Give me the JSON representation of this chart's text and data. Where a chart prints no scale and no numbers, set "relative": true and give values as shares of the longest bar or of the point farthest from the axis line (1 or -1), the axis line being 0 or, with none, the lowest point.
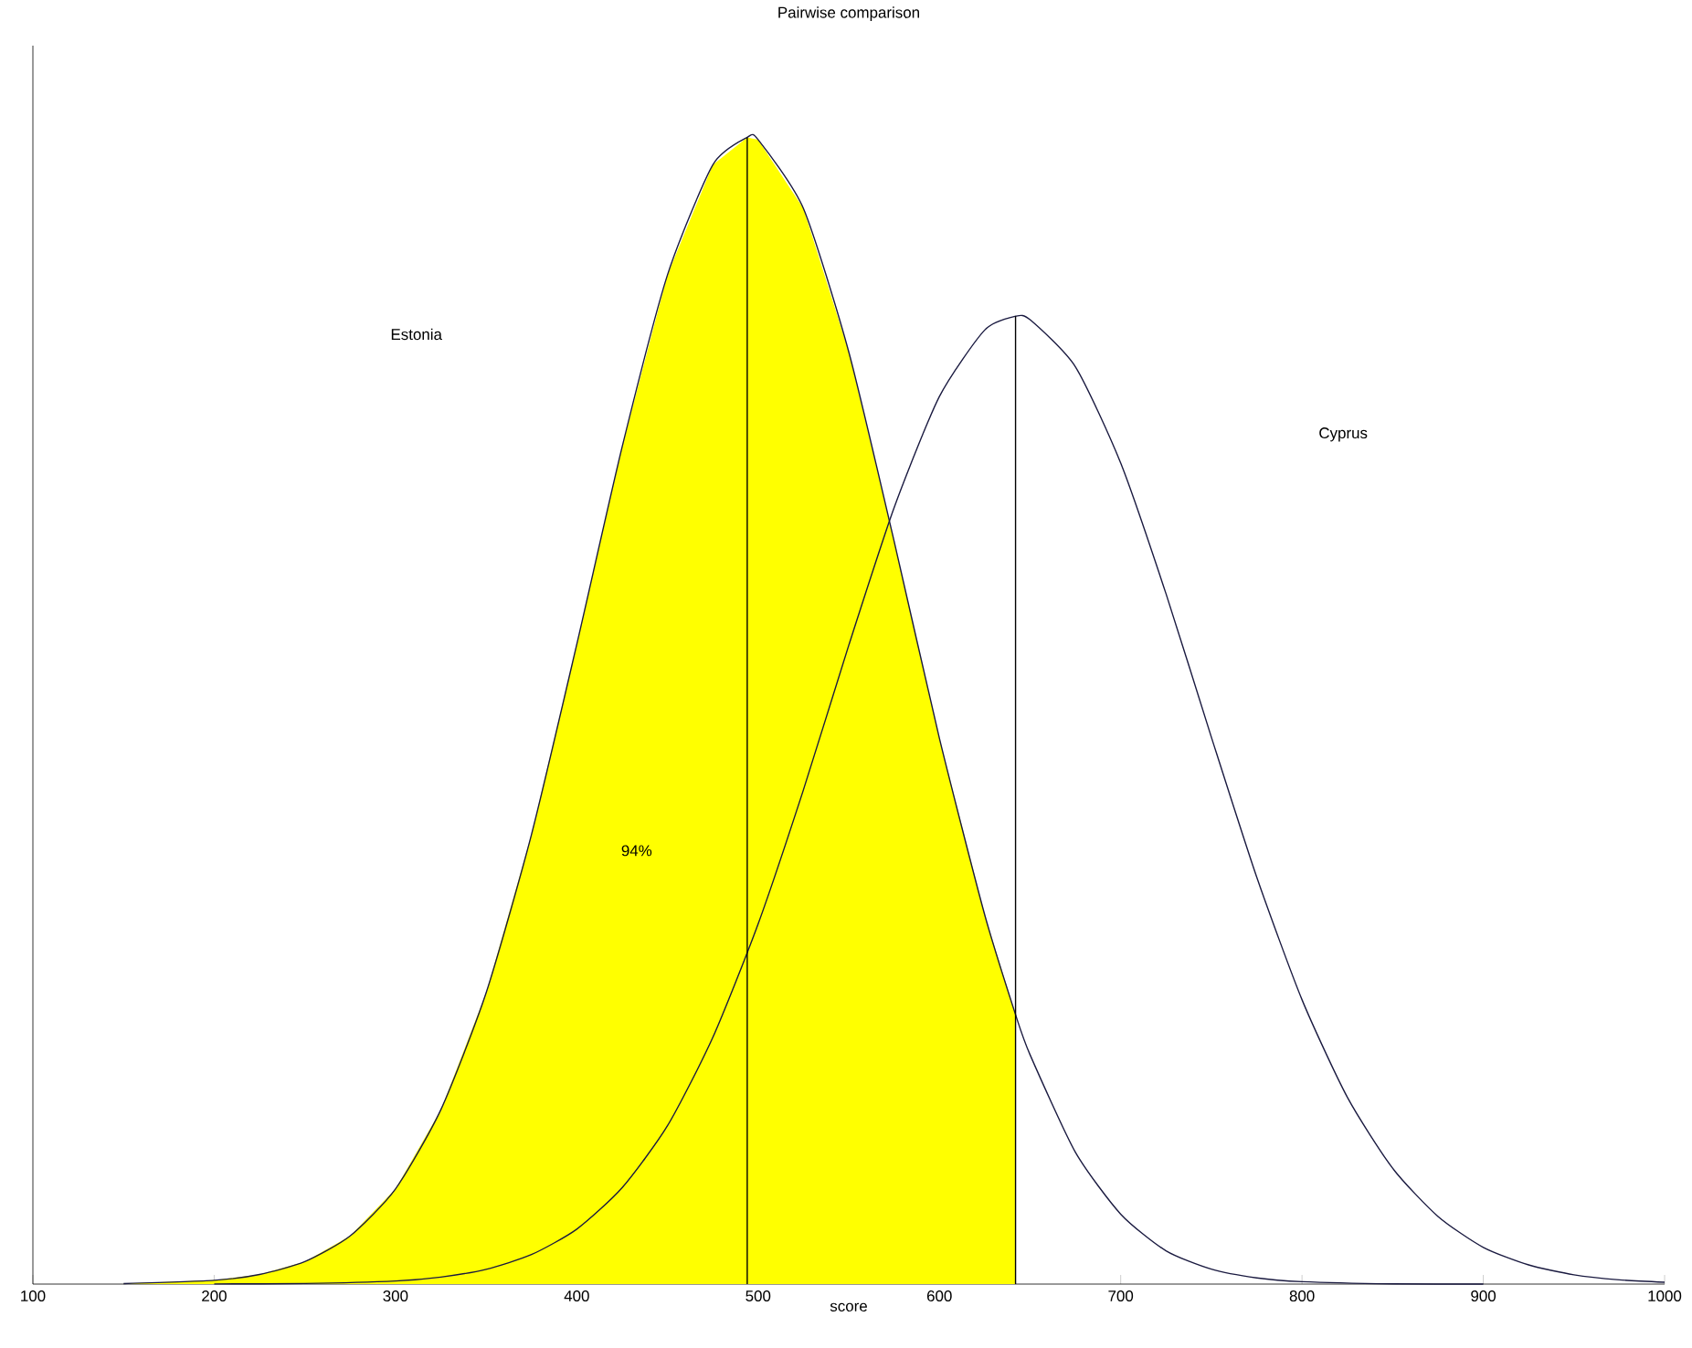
{
  "chart_data": {
    "type": "line",
    "title": "Pairwise comparison",
    "xlabel": "score",
    "relative": true,
    "xlim": [
      100,
      1000
    ],
    "xticks": [
      100,
      200,
      300,
      400,
      500,
      600,
      700,
      800,
      900,
      1000
    ],
    "grid": false,
    "marker": "none",
    "line_style": "solid",
    "series": [
      {
        "type": "area",
        "color": "#ffff00",
        "x": [
          150,
          200,
          225,
          250,
          275,
          300,
          325,
          350,
          375,
          400,
          425,
          450,
          475,
          494,
          500,
          525,
          550,
          575,
          600,
          625,
          642
        ],
        "values": [
          0.0004,
          0.0033,
          0.0084,
          0.0196,
          0.042,
          0.083,
          0.152,
          0.254,
          0.392,
          0.558,
          0.73,
          0.88,
          0.976,
          1,
          0.998,
          0.938,
          0.813,
          0.648,
          0.476,
          0.322,
          0.235
        ]
      },
      {
        "color": "#1a1a40",
        "x": [
          150,
          200,
          225,
          250,
          275,
          300,
          325,
          350,
          375,
          400,
          425,
          450,
          475,
          494,
          500,
          525,
          550,
          575,
          600,
          625,
          642,
          650,
          675,
          700,
          725,
          750,
          775,
          800,
          850,
          900
        ],
        "values": [
          0.0004,
          0.0033,
          0.0084,
          0.0196,
          0.042,
          0.083,
          0.152,
          0.254,
          0.392,
          0.558,
          0.73,
          0.88,
          0.976,
          1,
          0.998,
          0.938,
          0.813,
          0.648,
          0.476,
          0.322,
          0.235,
          0.2,
          0.115,
          0.061,
          0.029,
          0.013,
          0.0054,
          0.0021,
          0.0002,
          0
        ]
      },
      {
        "color": "#1a1a40",
        "x": [
          200,
          250,
          300,
          325,
          350,
          375,
          400,
          425,
          450,
          475,
          500,
          525,
          550,
          575,
          600,
          625,
          642,
          650,
          675,
          700,
          725,
          750,
          775,
          800,
          825,
          850,
          875,
          900,
          925,
          950,
          975,
          1000
        ],
        "values": [
          0.0001,
          0.0005,
          0.0027,
          0.0061,
          0.0129,
          0.0257,
          0.0479,
          0.084,
          0.138,
          0.215,
          0.314,
          0.431,
          0.557,
          0.677,
          0.774,
          0.832,
          0.844,
          0.841,
          0.8,
          0.716,
          0.602,
          0.477,
          0.355,
          0.248,
          0.163,
          0.101,
          0.059,
          0.032,
          0.0167,
          0.0081,
          0.0037,
          0.0016
        ]
      }
    ],
    "ref_lines": [
      {
        "axis": "x",
        "value": 494,
        "color": "#000000"
      },
      {
        "axis": "x",
        "value": 642,
        "color": "#000000"
      }
    ],
    "annotations": [
      "Estonia",
      "Cyprus",
      "94%"
    ]
  }
}
